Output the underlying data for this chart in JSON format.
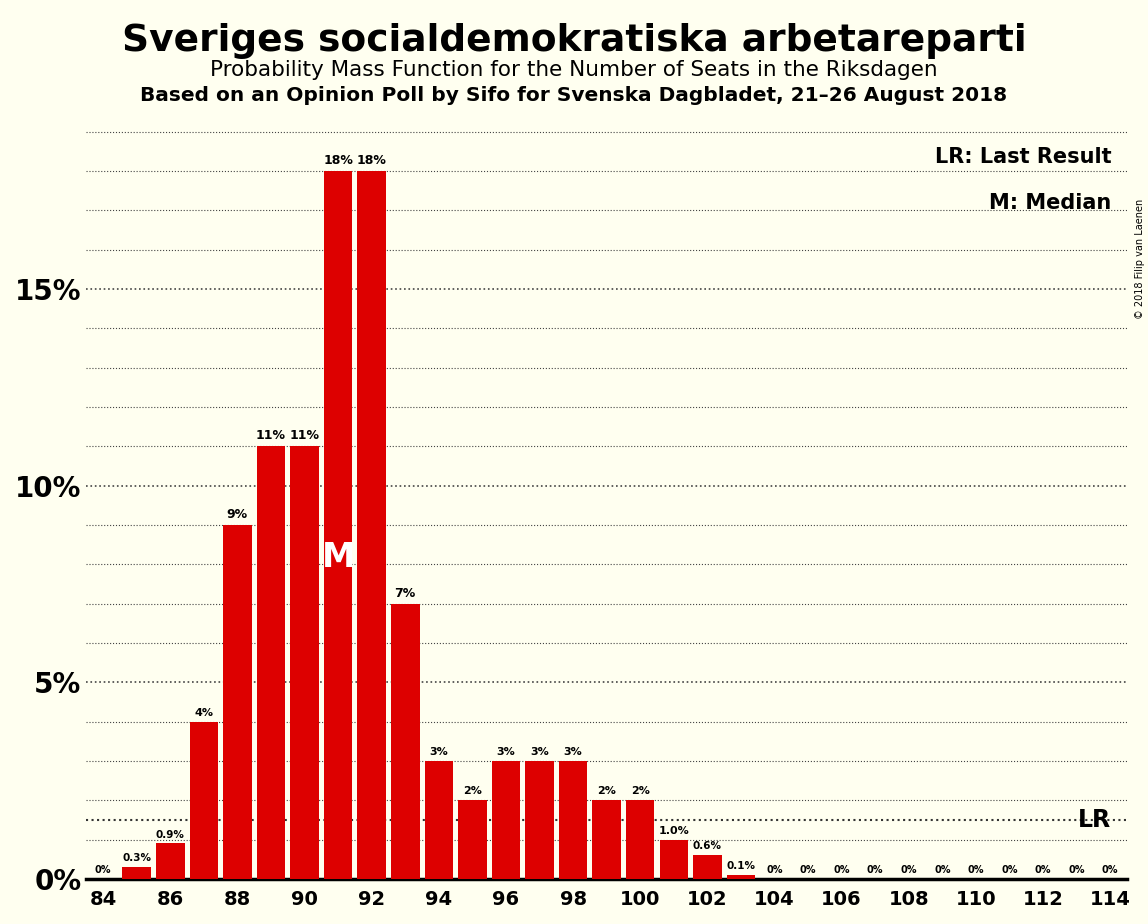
{
  "title1": "Sveriges socialdemokratiska arbetareparti",
  "title2": "Probability Mass Function for the Number of Seats in the Riksdagen",
  "title3": "Based on an Opinion Poll by Sifo for Svenska Dagbladet, 21–26 August 2018",
  "copyright": "© 2018 Filip van Laenen",
  "seats": [
    84,
    85,
    86,
    87,
    88,
    89,
    90,
    91,
    92,
    93,
    94,
    95,
    96,
    97,
    98,
    99,
    100,
    101,
    102,
    103,
    104,
    105,
    106,
    107,
    108,
    109,
    110,
    111,
    112,
    113,
    114
  ],
  "values": [
    0.0,
    0.3,
    0.9,
    4.0,
    9.0,
    11.0,
    11.0,
    18.0,
    18.0,
    7.0,
    3.0,
    2.0,
    3.0,
    3.0,
    3.0,
    2.0,
    2.0,
    1.0,
    0.6,
    0.1,
    0.0,
    0.0,
    0.0,
    0.0,
    0.0,
    0.0,
    0.0,
    0.0,
    0.0,
    0.0,
    0.0
  ],
  "bar_color": "#dd0000",
  "bg_color": "#fffff0",
  "text_color": "#000000",
  "lr_line_y": 1.5,
  "lr_seat": 113,
  "median_seat_idx": 7,
  "median_label_seat": 91,
  "legend_lr": "LR: Last Result",
  "legend_m": "M: Median",
  "lr_label": "LR",
  "median_label": "M",
  "yticks": [
    0,
    5,
    10,
    15
  ],
  "ylim": [
    0,
    19.5
  ],
  "xtick_seats": [
    84,
    86,
    88,
    90,
    92,
    94,
    96,
    98,
    100,
    102,
    104,
    106,
    108,
    110,
    112,
    114
  ]
}
